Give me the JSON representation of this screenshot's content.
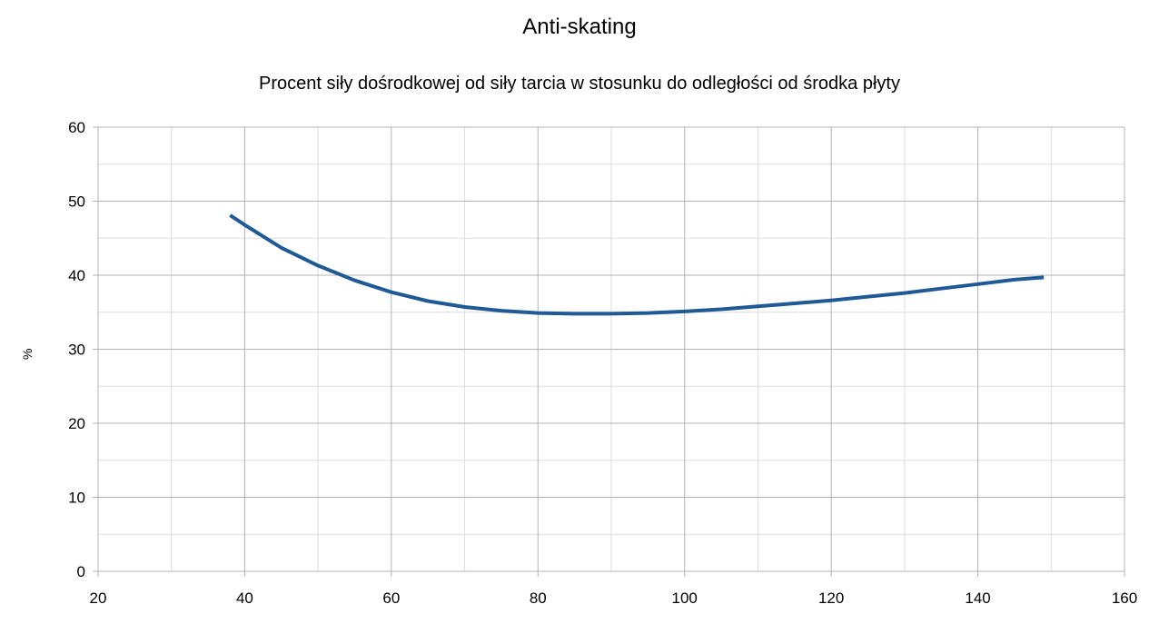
{
  "chart_data": {
    "type": "line",
    "title": "Anti-skating",
    "subtitle": "Procent siły dośrodkowej od siły tarcia w stosunku do odległości od środka płyty",
    "xlabel": "",
    "ylabel": "%",
    "xlim": [
      20,
      160
    ],
    "ylim": [
      0,
      60
    ],
    "x_ticks": [
      20,
      40,
      60,
      80,
      100,
      120,
      140,
      160
    ],
    "y_ticks": [
      0,
      10,
      20,
      30,
      40,
      50,
      60
    ],
    "grid": true,
    "series": [
      {
        "color": "#1f5a96",
        "x": [
          38,
          40,
          45,
          50,
          55,
          60,
          65,
          70,
          75,
          80,
          85,
          90,
          95,
          100,
          105,
          110,
          115,
          120,
          125,
          130,
          135,
          140,
          145,
          149
        ],
        "y": [
          48.1,
          46.8,
          43.7,
          41.3,
          39.3,
          37.7,
          36.5,
          35.7,
          35.2,
          34.9,
          34.8,
          34.8,
          34.9,
          35.1,
          35.4,
          35.8,
          36.2,
          36.6,
          37.1,
          37.6,
          38.2,
          38.8,
          39.4,
          39.7
        ]
      }
    ]
  }
}
